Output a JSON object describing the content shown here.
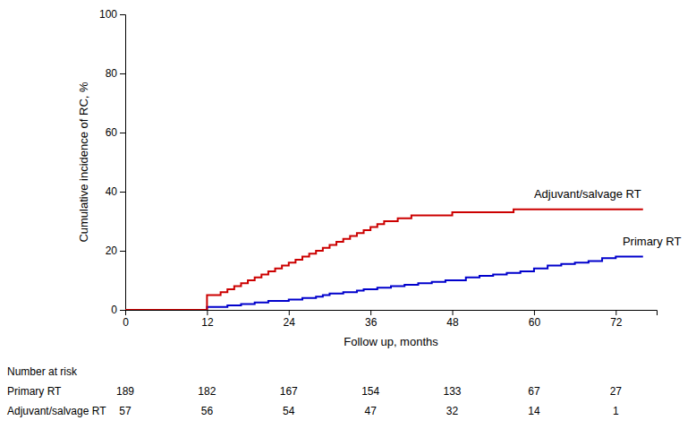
{
  "chart_data": {
    "type": "step",
    "xlabel": "Follow up, months",
    "ylabel": "Cumulative incidence of RC, %",
    "xlim": [
      0,
      78
    ],
    "ylim": [
      0,
      100
    ],
    "xticks": [
      0,
      12,
      24,
      36,
      48,
      60,
      72
    ],
    "yticks": [
      0,
      20,
      40,
      60,
      80,
      100
    ],
    "series": [
      {
        "name": "Primary RT",
        "color": "#0000cc",
        "x": [
          0,
          11,
          12,
          13,
          14,
          15,
          16,
          17,
          18,
          19,
          20,
          21,
          22,
          23,
          24,
          25,
          26,
          27,
          28,
          29,
          30,
          31,
          32,
          33,
          34,
          35,
          36,
          37,
          38,
          39,
          40,
          41,
          42,
          43,
          44,
          45,
          46,
          47,
          48,
          50,
          52,
          54,
          56,
          58,
          60,
          62,
          64,
          66,
          68,
          70,
          72,
          76
        ],
        "values": [
          0,
          0,
          1,
          1,
          1,
          1.5,
          1.5,
          2,
          2,
          2.5,
          2.5,
          3,
          3,
          3,
          3.5,
          3.5,
          4,
          4,
          4.5,
          5,
          5.5,
          5.5,
          6,
          6,
          6.5,
          7,
          7,
          7.5,
          7.5,
          8,
          8,
          8.5,
          8.5,
          9,
          9,
          9.5,
          9.5,
          10,
          10,
          11,
          11.5,
          12,
          12.5,
          13,
          14,
          15,
          15.5,
          16,
          16.5,
          17.5,
          18,
          18
        ],
        "at_risk": [
          189,
          182,
          167,
          154,
          133,
          67,
          27
        ]
      },
      {
        "name": "Adjuvant/salvage RT",
        "color": "#cc0000",
        "x": [
          0,
          11,
          12,
          13,
          14,
          15,
          16,
          17,
          18,
          19,
          20,
          21,
          22,
          23,
          24,
          25,
          26,
          27,
          28,
          29,
          30,
          31,
          32,
          33,
          34,
          35,
          36,
          37,
          38,
          39,
          40,
          41,
          42,
          43,
          44,
          45,
          46,
          47,
          48,
          49,
          50,
          52,
          54,
          56,
          57,
          58,
          76
        ],
        "values": [
          0,
          0,
          5,
          5,
          6,
          7,
          8,
          9,
          10,
          11,
          12,
          13,
          14,
          15,
          16,
          17,
          18,
          19,
          20,
          21,
          22,
          23,
          24,
          25,
          26,
          27,
          28,
          29,
          30,
          30,
          31,
          31,
          32,
          32,
          32,
          32,
          32,
          32,
          33,
          33,
          33,
          33,
          33,
          33,
          34,
          34,
          34
        ],
        "at_risk": [
          57,
          56,
          54,
          47,
          32,
          14,
          1
        ]
      }
    ],
    "annotations": [
      {
        "text": "Adjuvant/salvage RT",
        "x": 60,
        "y": 39
      },
      {
        "text": "Primary RT",
        "x": 73,
        "y": 23
      }
    ],
    "risk_table": {
      "title": "Number at risk",
      "x": [
        0,
        12,
        24,
        36,
        48,
        60,
        72
      ]
    }
  }
}
